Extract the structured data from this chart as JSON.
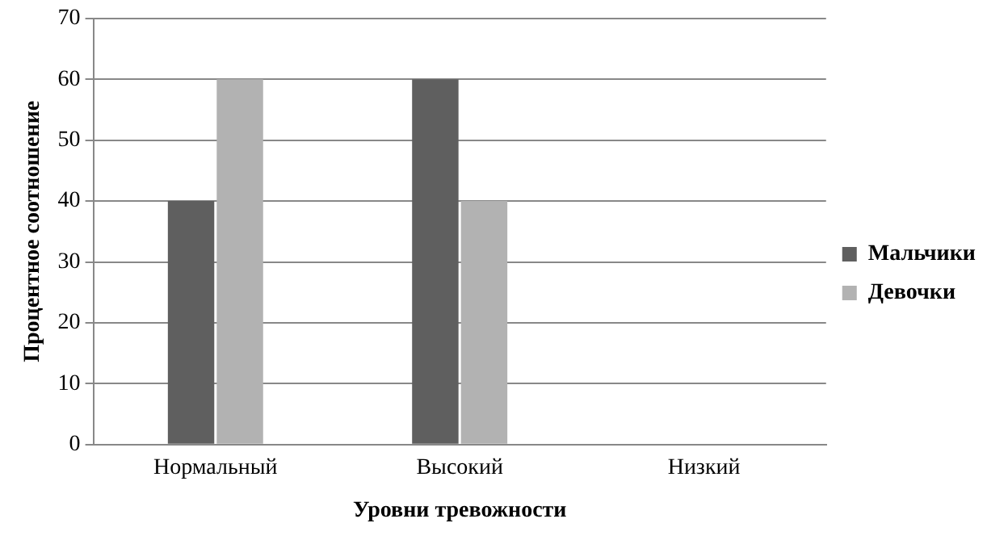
{
  "chart_data": {
    "type": "bar",
    "xlabel": "Уровни тревожности",
    "ylabel": "Процентное соотношение",
    "categories": [
      "Нормальный",
      "Высокий",
      "Низкий"
    ],
    "series": [
      {
        "name": "Мальчики",
        "color": "#5f5f5f",
        "values": [
          40,
          60,
          0
        ]
      },
      {
        "name": "Девочки",
        "color": "#b2b2b2",
        "values": [
          60,
          40,
          0
        ]
      }
    ],
    "ylim": [
      0,
      70
    ],
    "yticks": [
      0,
      10,
      20,
      30,
      40,
      50,
      60,
      70
    ],
    "grid": "y",
    "legend": "right"
  }
}
